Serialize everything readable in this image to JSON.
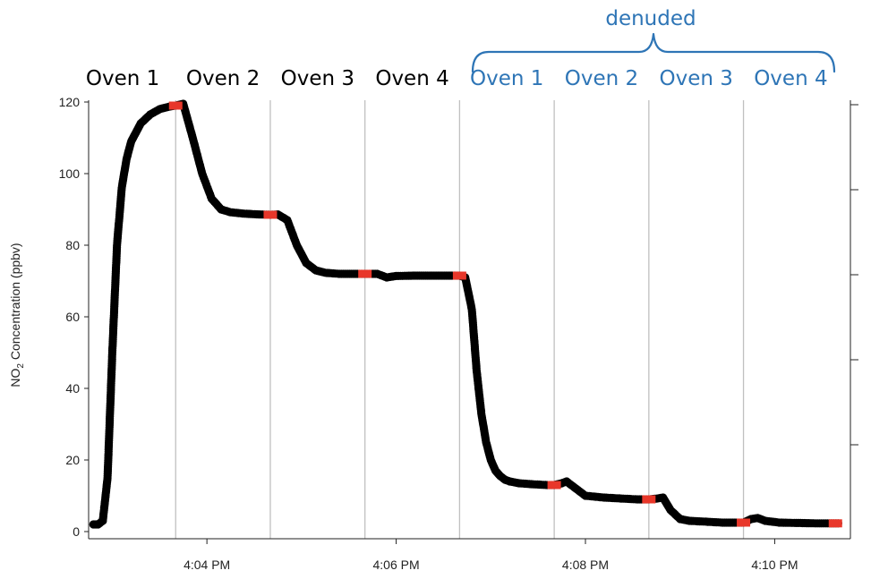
{
  "chart_data": {
    "type": "scatter",
    "ylabel": "NO2 Concentration (ppbv)",
    "ylabel_main": "NO",
    "ylabel_sub": "2",
    "ylabel_rest": " Concentration (ppbv)",
    "ylim": [
      0,
      120
    ],
    "yticks": [
      0,
      20,
      40,
      60,
      80,
      100,
      120
    ],
    "xlim_minutes": [
      242.75,
      250.8
    ],
    "xticks": [
      {
        "label": "4:04 PM",
        "minute": 244
      },
      {
        "label": "4:06 PM",
        "minute": 246
      },
      {
        "label": "4:08 PM",
        "minute": 248
      },
      {
        "label": "4:10 PM",
        "minute": 250
      }
    ],
    "right_axis_ticks": 5,
    "grid": false,
    "colors": {
      "series": "#000000",
      "marker": "#e8372a",
      "stage_lines": "#c0c0c0",
      "denuded": "#2e75b6",
      "oven": "#000000"
    },
    "stage_boundaries": [
      "4:03:40 PM",
      "4:04:40 PM",
      "4:05:40 PM",
      "4:06:40 PM",
      "4:07:40 PM",
      "4:08:40 PM",
      "4:09:40 PM",
      "4:10:40 PM"
    ],
    "stage_boundary_minutes": [
      243.67,
      244.67,
      245.67,
      246.67,
      247.67,
      248.67,
      249.67,
      250.67
    ],
    "stage_end_values": [
      119,
      88.5,
      72,
      71.5,
      13,
      9,
      2.5,
      2.3
    ],
    "series": [
      {
        "x": [
          242.8,
          242.85,
          242.9,
          242.95,
          243.0,
          243.05,
          243.1,
          243.15,
          243.2,
          243.3,
          243.4,
          243.5,
          243.6,
          243.67,
          243.75,
          243.85,
          243.95,
          244.05,
          244.15,
          244.25,
          244.4,
          244.55,
          244.67,
          244.75,
          244.85,
          244.95,
          245.05,
          245.15,
          245.25,
          245.4,
          245.55,
          245.67,
          245.8,
          245.9,
          246.0,
          246.2,
          246.4,
          246.55,
          246.67,
          246.73,
          246.8,
          246.85,
          246.9,
          246.95,
          247.0,
          247.05,
          247.1,
          247.15,
          247.2,
          247.3,
          247.45,
          247.6,
          247.67,
          247.75,
          247.8,
          247.9,
          248.0,
          248.2,
          248.4,
          248.55,
          248.67,
          248.75,
          248.82,
          248.9,
          249.0,
          249.1,
          249.25,
          249.45,
          249.6,
          249.67,
          249.75,
          249.82,
          249.9,
          250.05,
          250.25,
          250.45,
          250.6,
          250.67
        ],
        "y": [
          2,
          2,
          3,
          15,
          50,
          80,
          96,
          104,
          109,
          114,
          116.5,
          118,
          118.7,
          119,
          119.5,
          110,
          100,
          93,
          90,
          89.2,
          88.8,
          88.6,
          88.5,
          88.6,
          87,
          80,
          75,
          73,
          72.3,
          72,
          72,
          72,
          72,
          71,
          71.4,
          71.5,
          71.5,
          71.5,
          71.5,
          71,
          62,
          45,
          33,
          25,
          20,
          17,
          15.5,
          14.5,
          14,
          13.5,
          13.2,
          13,
          13,
          13.5,
          14,
          12,
          10,
          9.5,
          9.2,
          9,
          9,
          9.2,
          9.5,
          6,
          3.5,
          3,
          2.8,
          2.5,
          2.5,
          2.5,
          3.5,
          3.8,
          3,
          2.5,
          2.4,
          2.3,
          2.3,
          2.3
        ]
      }
    ],
    "oven_labels": [
      {
        "text": "Oven 1",
        "group": "oven"
      },
      {
        "text": "Oven 2",
        "group": "oven"
      },
      {
        "text": "Oven 3",
        "group": "oven"
      },
      {
        "text": "Oven 4",
        "group": "oven"
      },
      {
        "text": "Oven 1",
        "group": "denuded"
      },
      {
        "text": "Oven 2",
        "group": "denuded"
      },
      {
        "text": "Oven 3",
        "group": "denuded"
      },
      {
        "text": "Oven 4",
        "group": "denuded"
      }
    ],
    "bracket_label": "denuded"
  }
}
